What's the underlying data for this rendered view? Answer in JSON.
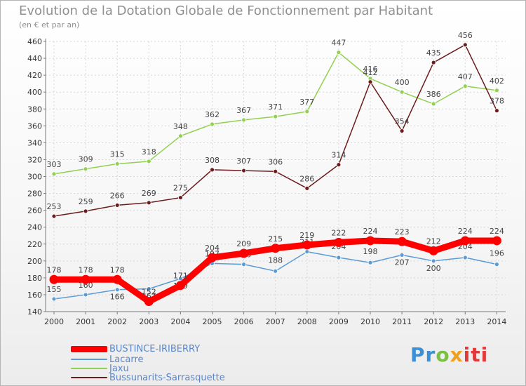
{
  "colors": {
    "BUSTINCE-IRIBERRY": "#ff0000",
    "Lacarre": "#5b9bd5",
    "Jaxu": "#92d050",
    "Bussunarits-Sarrasquette": "#6b1c1c",
    "axis": "#7a7a7a",
    "grid": "#d6d6d6",
    "tick_text": "#333333"
  },
  "chart_data": {
    "type": "line",
    "title": "Evolution de la Dotation Globale de Fonctionnement par Habitant",
    "subtitle": "(en € et par an)",
    "xlabel": "",
    "ylabel": "",
    "categories": [
      "2000",
      "2001",
      "2002",
      "2003",
      "2004",
      "2005",
      "2006",
      "2007",
      "2008",
      "2009",
      "2010",
      "2011",
      "2012",
      "2013",
      "2014"
    ],
    "ylim": [
      140,
      460
    ],
    "yticks": [
      140,
      160,
      180,
      200,
      220,
      240,
      260,
      280,
      300,
      320,
      340,
      360,
      380,
      400,
      420,
      440,
      460
    ],
    "grid": true,
    "legend_position": "bottom-left",
    "series": [
      {
        "name": "Jaxu",
        "values": [
          303,
          309,
          315,
          318,
          348,
          362,
          367,
          371,
          377,
          447,
          416,
          400,
          386,
          407,
          402
        ]
      },
      {
        "name": "Bussunarits-Sarrasquette",
        "values": [
          253,
          259,
          266,
          269,
          275,
          308,
          307,
          306,
          286,
          314,
          412,
          354,
          435,
          456,
          378
        ]
      },
      {
        "name": "Lacarre",
        "values": [
          155,
          160,
          166,
          167,
          179,
          197,
          196,
          188,
          211,
          204,
          198,
          207,
          200,
          204,
          196
        ]
      },
      {
        "name": "BUSTINCE-IRIBERRY",
        "values": [
          178,
          178,
          178,
          152,
          171,
          204,
          209,
          215,
          219,
          222,
          224,
          223,
          212,
          224,
          224
        ]
      }
    ]
  },
  "legend": {
    "items": [
      "BUSTINCE-IRIBERRY",
      "Lacarre",
      "Jaxu",
      "Bussunarits-Sarrasquette"
    ]
  },
  "logo": {
    "part1": "Pr",
    "part2": "o",
    "part3": "x",
    "part4": "iti"
  }
}
